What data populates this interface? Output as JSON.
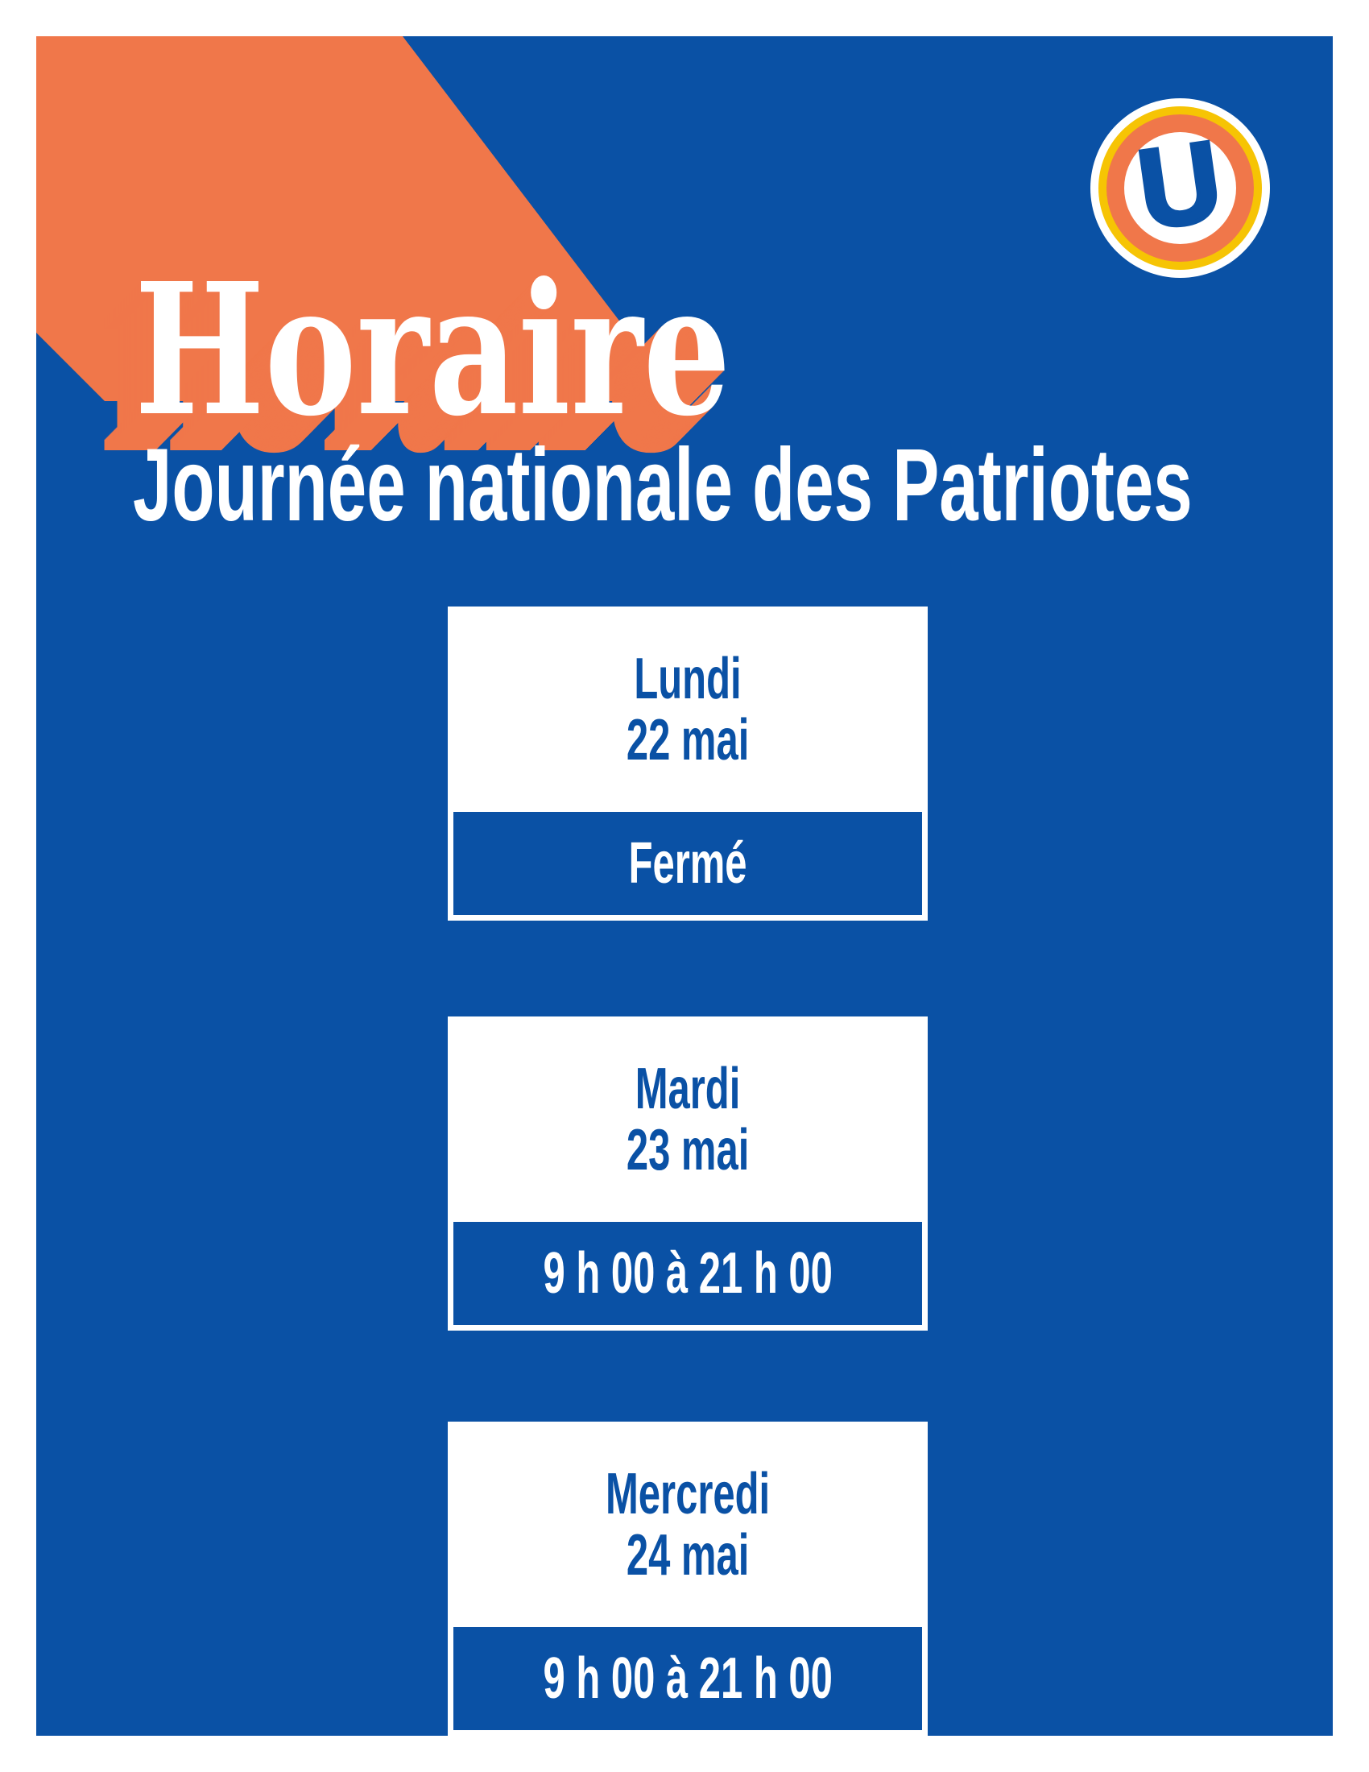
{
  "colors": {
    "blue": "#0A51A5",
    "orange": "#F0774A",
    "yellow": "#F6C404",
    "white": "#FFFFFF"
  },
  "header": {
    "title": "Horaire",
    "subtitle": "Journée nationale des Patriotes"
  },
  "logo": {
    "letter": "U"
  },
  "schedule": {
    "cards": [
      {
        "day": "Lundi",
        "date": "22 mai",
        "hours": "Fermé"
      },
      {
        "day": "Mardi",
        "date": "23 mai",
        "hours": "9 h 00 à 21 h 00"
      },
      {
        "day": "Mercredi",
        "date": "24 mai",
        "hours": "9 h 00 à 21 h 00"
      }
    ]
  }
}
